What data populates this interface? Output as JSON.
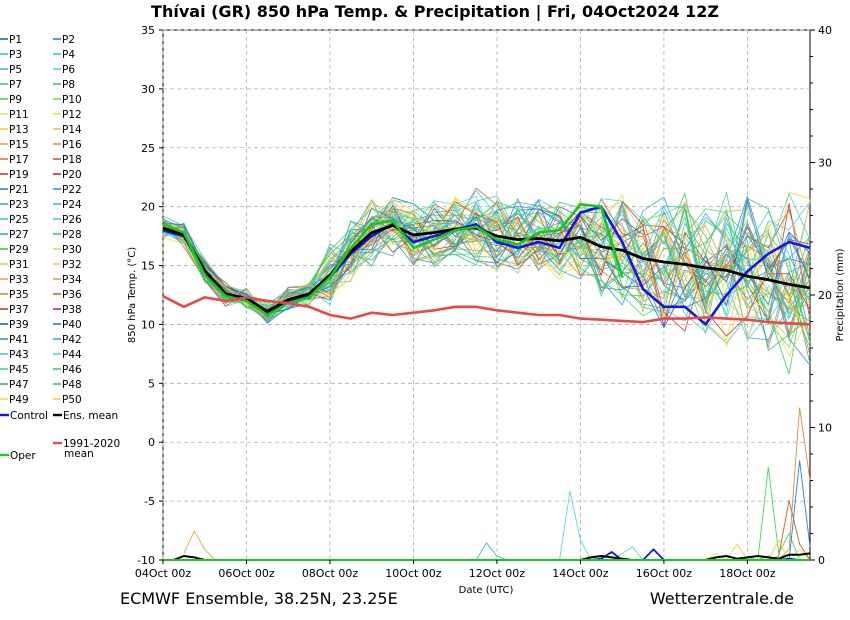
{
  "chart_data": {
    "type": "line",
    "title": "Thívai  (GR)  850 hPa Temp. & Precipitation | Fri, 04Oct2024 12Z",
    "xlabel": "Date (UTC)",
    "ylabel": "850 hPa Temp. (°C)",
    "y2label": "Precipitation (mm)",
    "ylim": [
      -10,
      35
    ],
    "y2lim": [
      0,
      40
    ],
    "xlim_hours": [
      0,
      372
    ],
    "x_ticks": [
      {
        "h": 0,
        "label": "04Oct 00z"
      },
      {
        "h": 48,
        "label": "06Oct 00z"
      },
      {
        "h": 96,
        "label": "08Oct 00z"
      },
      {
        "h": 144,
        "label": "10Oct 00z"
      },
      {
        "h": 192,
        "label": "12Oct 00z"
      },
      {
        "h": 240,
        "label": "14Oct 00z"
      },
      {
        "h": 288,
        "label": "16Oct 00z"
      },
      {
        "h": 336,
        "label": "18Oct 00z"
      }
    ],
    "y_ticks": [
      -10,
      -5,
      0,
      5,
      10,
      15,
      20,
      25,
      30,
      35
    ],
    "y2_ticks": [
      0,
      10,
      20,
      30,
      40
    ],
    "grid": true,
    "footer_left": "ECMWF Ensemble, 38.25N, 23.25E",
    "footer_right": "Wetterzentrale.de",
    "legend_entries": [
      "P1",
      "P2",
      "P3",
      "P4",
      "P5",
      "P6",
      "P7",
      "P8",
      "P9",
      "P10",
      "P11",
      "P12",
      "P13",
      "P14",
      "P15",
      "P16",
      "P17",
      "P18",
      "P19",
      "P20",
      "P21",
      "P22",
      "P23",
      "P24",
      "P25",
      "P26",
      "P27",
      "P28",
      "P29",
      "P30",
      "P31",
      "P32",
      "P33",
      "P34",
      "P35",
      "P36",
      "P37",
      "P38",
      "P39",
      "P40",
      "P41",
      "P42",
      "P43",
      "P44",
      "P45",
      "P46",
      "P47",
      "P48",
      "P49",
      "P50"
    ],
    "member_colors": [
      "#1f5fd6",
      "#2a7fe0",
      "#3cc0d8",
      "#2ad0c8",
      "#46b8d8",
      "#5ad8e0",
      "#35c890",
      "#3ccc80",
      "#3ee05a",
      "#7ade3e",
      "#e8e85a",
      "#f0dc4a",
      "#f4d23e",
      "#f0c040",
      "#e6a83a",
      "#d89040",
      "#d87a3c",
      "#c8602e",
      "#c24a2e",
      "#b83030",
      "#3a7cd8",
      "#3a90e0",
      "#36a8dc",
      "#40c0e0",
      "#40cccc",
      "#4ad0b8",
      "#30c078",
      "#34d070",
      "#3ac850",
      "#d8e05a",
      "#e0d84a",
      "#ecd048",
      "#d8b040",
      "#e0a040",
      "#d09040",
      "#c87038",
      "#c04030",
      "#b83838",
      "#2060c0",
      "#2a78d8",
      "#3090d8",
      "#38a8e0",
      "#4cc8e0",
      "#50d0d0",
      "#48d0a8",
      "#40c880",
      "#30c060",
      "#34d058",
      "#e8e050",
      "#f0d040"
    ],
    "series": [
      {
        "name": "Control",
        "color": "#1515e0",
        "hours": [
          0,
          12,
          24,
          36,
          48,
          60,
          72,
          84,
          96,
          108,
          120,
          132,
          144,
          156,
          168,
          180,
          192,
          204,
          216,
          228,
          240,
          252,
          264,
          276,
          288,
          300,
          312,
          324,
          336,
          348,
          360,
          372
        ],
        "values": [
          18,
          17.5,
          14.5,
          12.5,
          12,
          11,
          12,
          12.5,
          14,
          16,
          17.5,
          18.5,
          17,
          17.5,
          18,
          18.5,
          17,
          16.5,
          17,
          16.5,
          19.5,
          20,
          17,
          13,
          11.5,
          11.5,
          10,
          12.5,
          14.5,
          16,
          17,
          16.5
        ]
      },
      {
        "name": "Ens. mean",
        "color": "#000000",
        "hours": [
          0,
          12,
          24,
          36,
          48,
          60,
          72,
          84,
          96,
          108,
          120,
          132,
          144,
          156,
          168,
          180,
          192,
          204,
          216,
          228,
          240,
          252,
          264,
          276,
          288,
          300,
          312,
          324,
          336,
          348,
          360,
          372
        ],
        "values": [
          18.2,
          17.6,
          14.6,
          12.6,
          12.2,
          11.1,
          12.1,
          12.6,
          14.2,
          16.2,
          17.8,
          18.4,
          17.6,
          17.8,
          18.1,
          18.2,
          17.5,
          17.2,
          17.3,
          17.1,
          17.4,
          16.6,
          16.3,
          15.6,
          15.3,
          15.1,
          14.8,
          14.6,
          14.1,
          13.8,
          13.4,
          13.1
        ]
      },
      {
        "name": "Oper",
        "color": "#18c818",
        "hours": [
          0,
          12,
          24,
          36,
          48,
          60,
          72,
          84,
          96,
          108,
          120,
          132,
          144,
          156,
          168,
          180,
          192,
          204,
          216,
          228,
          240,
          252,
          264
        ],
        "values": [
          18.5,
          17.8,
          14.2,
          12.4,
          12,
          10.8,
          11.8,
          12.3,
          14,
          16.5,
          18.5,
          18.8,
          16.5,
          17.2,
          18,
          18.3,
          17.2,
          16.8,
          17.8,
          18,
          20.2,
          20,
          14
        ]
      },
      {
        "name": "1991-2020 mean",
        "color": "#e84a4a",
        "hours": [
          0,
          12,
          24,
          36,
          48,
          60,
          72,
          84,
          96,
          108,
          120,
          132,
          144,
          156,
          168,
          180,
          192,
          204,
          216,
          228,
          240,
          252,
          264,
          276,
          288,
          300,
          312,
          324,
          336,
          348,
          360,
          372
        ],
        "values": [
          12.4,
          11.5,
          12.3,
          12,
          12.3,
          12,
          11.8,
          11.5,
          10.8,
          10.5,
          11,
          10.8,
          11,
          11.2,
          11.5,
          11.5,
          11.2,
          11,
          10.8,
          10.8,
          10.5,
          10.4,
          10.3,
          10.2,
          10.5,
          10.5,
          10.6,
          10.5,
          10.4,
          10.2,
          10.1,
          10
        ]
      }
    ],
    "legend_special": [
      {
        "key": "control",
        "label": "Control",
        "color": "#1515e0"
      },
      {
        "key": "mean",
        "label": "Ens. mean",
        "color": "#000000"
      },
      {
        "key": "clim",
        "label": "1991-2020",
        "label2": "mean",
        "color": "#e84a4a"
      },
      {
        "key": "oper",
        "label": "Oper",
        "color": "#18c818"
      }
    ],
    "precipitation": {
      "axis": "y2",
      "hours": [
        0,
        6,
        12,
        18,
        24,
        30,
        36,
        42,
        48,
        54,
        60,
        66,
        72,
        78,
        84,
        90,
        96,
        102,
        108,
        114,
        120,
        126,
        132,
        138,
        144,
        150,
        156,
        162,
        168,
        174,
        180,
        186,
        192,
        198,
        204,
        210,
        216,
        222,
        228,
        234,
        240,
        246,
        252,
        258,
        264,
        270,
        276,
        282,
        288,
        294,
        300,
        306,
        312,
        318,
        324,
        330,
        336,
        342,
        348,
        354,
        360,
        366,
        372
      ],
      "mean": [
        0,
        0,
        0.3,
        0.2,
        0,
        0,
        0,
        0,
        0,
        0,
        0,
        0,
        0,
        0,
        0,
        0,
        0,
        0,
        0,
        0,
        0,
        0,
        0,
        0,
        0,
        0,
        0,
        0,
        0,
        0,
        0,
        0,
        0,
        0,
        0,
        0,
        0,
        0,
        0,
        0,
        0,
        0.2,
        0.3,
        0.2,
        0.1,
        0,
        0,
        0,
        0,
        0,
        0,
        0,
        0,
        0.2,
        0.3,
        0.1,
        0.2,
        0.3,
        0.2,
        0.1,
        0.4,
        0.4,
        0.5
      ],
      "control": [
        0,
        0,
        0,
        0,
        0,
        0,
        0,
        0,
        0,
        0,
        0,
        0,
        0,
        0,
        0,
        0,
        0,
        0,
        0,
        0,
        0,
        0,
        0,
        0,
        0,
        0,
        0,
        0,
        0,
        0,
        0,
        0,
        0,
        0,
        0,
        0,
        0,
        0,
        0,
        0,
        0,
        0,
        0.1,
        0.6,
        0,
        0,
        0,
        0.8,
        0,
        0,
        0,
        0,
        0,
        0,
        0,
        0,
        0,
        0,
        0,
        0,
        0.1,
        0,
        0
      ],
      "member_spikes": [
        {
          "color": "#e6a83a",
          "hours": [
            12,
            18,
            24,
            30
          ],
          "values": [
            0.5,
            2.2,
            0.8,
            0
          ]
        },
        {
          "color": "#5ad8e0",
          "hours": [
            228,
            234,
            240,
            246,
            252,
            258,
            264,
            270,
            276,
            282
          ],
          "values": [
            0,
            5.2,
            1.5,
            0,
            0,
            0,
            0.5,
            1.0,
            0,
            0
          ]
        },
        {
          "color": "#d89040",
          "hours": [
            306,
            312,
            318,
            324,
            330,
            336,
            342,
            348,
            354,
            360,
            366,
            372
          ],
          "values": [
            0,
            0,
            0,
            0,
            0,
            0,
            0,
            0.3,
            0,
            0.8,
            11.5,
            6.0
          ]
        },
        {
          "color": "#3ee05a",
          "hours": [
            306,
            312,
            318,
            324,
            330,
            336,
            342,
            348,
            354,
            360,
            366,
            372
          ],
          "values": [
            0,
            0,
            0,
            0,
            0,
            0.2,
            0,
            7.0,
            0.5,
            2.0,
            0,
            0
          ]
        },
        {
          "color": "#2a7fe0",
          "hours": [
            306,
            312,
            318,
            324,
            330,
            336,
            342,
            348,
            354,
            360,
            366,
            372
          ],
          "values": [
            0,
            0,
            0,
            0,
            0,
            0,
            0,
            0,
            0,
            0,
            7.5,
            1.0
          ]
        },
        {
          "color": "#f4d23e",
          "hours": [
            306,
            312,
            318,
            324,
            330,
            336,
            342,
            348,
            354,
            360,
            366,
            372
          ],
          "values": [
            0,
            0,
            0.5,
            0,
            1.2,
            0,
            0,
            0,
            1.5,
            0,
            0.8,
            0
          ]
        },
        {
          "color": "#c8602e",
          "hours": [
            306,
            312,
            318,
            324,
            330,
            336,
            342,
            348,
            354,
            360,
            366,
            372
          ],
          "values": [
            0,
            0,
            0,
            0,
            0,
            0,
            0,
            0,
            0.3,
            4.5,
            1.2,
            0
          ]
        },
        {
          "color": "#46b8d8",
          "hours": [
            150,
            156,
            162,
            168,
            174,
            180,
            186,
            192,
            198,
            204
          ],
          "values": [
            0,
            0,
            0,
            0,
            0,
            0,
            1.3,
            0.3,
            0,
            0
          ]
        }
      ]
    }
  }
}
